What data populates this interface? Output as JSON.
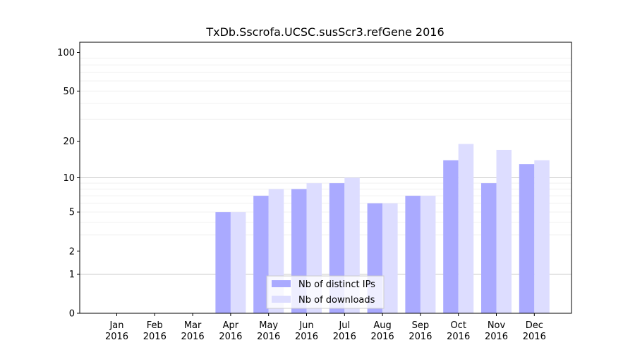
{
  "chart_data": {
    "type": "bar",
    "title": "TxDb.Sscrofa.UCSC.susScr3.refGene 2016",
    "xlabel": "",
    "ylabel": "",
    "categories": [
      [
        "Jan",
        "2016"
      ],
      [
        "Feb",
        "2016"
      ],
      [
        "Mar",
        "2016"
      ],
      [
        "Apr",
        "2016"
      ],
      [
        "May",
        "2016"
      ],
      [
        "Jun",
        "2016"
      ],
      [
        "Jul",
        "2016"
      ],
      [
        "Aug",
        "2016"
      ],
      [
        "Sep",
        "2016"
      ],
      [
        "Oct",
        "2016"
      ],
      [
        "Nov",
        "2016"
      ],
      [
        "Dec",
        "2016"
      ]
    ],
    "series": [
      {
        "name": "Nb of distinct IPs",
        "color": "#aaaaff",
        "values": [
          0,
          0,
          0,
          5,
          7,
          8,
          9,
          6,
          7,
          14,
          9,
          13
        ]
      },
      {
        "name": "Nb of downloads",
        "color": "#ddddff",
        "values": [
          0,
          0,
          0,
          5,
          8,
          9,
          10,
          6,
          7,
          19,
          17,
          14
        ]
      }
    ],
    "yscale": "log1p",
    "ylim": [
      0,
      120
    ],
    "yticks": [
      0,
      1,
      2,
      5,
      10,
      20,
      50,
      100
    ],
    "ytick_labels": [
      "0",
      "1",
      "2",
      "5",
      "10",
      "20",
      "50",
      "100"
    ],
    "grid": true,
    "legend_position": "bottom-center"
  }
}
